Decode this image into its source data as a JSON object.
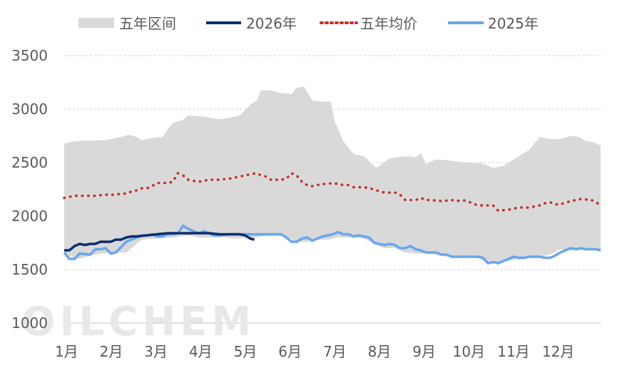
{
  "chart_data": {
    "type": "line",
    "title": "",
    "xlabel": "",
    "ylabel": "",
    "categories": [
      "1月",
      "2月",
      "3月",
      "4月",
      "5月",
      "6月",
      "7月",
      "8月",
      "9月",
      "10月",
      "11月",
      "12月"
    ],
    "ylim": [
      1000,
      3500
    ],
    "yticks": [
      1000,
      1500,
      2000,
      2500,
      3000,
      3500
    ],
    "grid": "horizontal dashed",
    "legend_position": "top",
    "x_unit": "day of year (Jan 1 = 0)",
    "watermark": "OILCHEM",
    "band": {
      "name": "五年区间",
      "color": "#d9d9d9",
      "upper": [
        [
          0,
          2680
        ],
        [
          10,
          2700
        ],
        [
          20,
          2705
        ],
        [
          40,
          2710
        ],
        [
          55,
          2740
        ],
        [
          62,
          2760
        ],
        [
          70,
          2740
        ],
        [
          75,
          2710
        ],
        [
          85,
          2730
        ],
        [
          95,
          2740
        ],
        [
          105,
          2870
        ],
        [
          115,
          2900
        ],
        [
          120,
          2940
        ],
        [
          135,
          2930
        ],
        [
          150,
          2905
        ],
        [
          160,
          2920
        ],
        [
          170,
          2940
        ],
        [
          180,
          3040
        ],
        [
          187,
          3090
        ],
        [
          190,
          3175
        ],
        [
          200,
          3175
        ],
        [
          210,
          3150
        ],
        [
          220,
          3140
        ],
        [
          225,
          3200
        ],
        [
          232,
          3210
        ],
        [
          240,
          3080
        ],
        [
          250,
          3070
        ],
        [
          258,
          3070
        ],
        [
          262,
          2880
        ],
        [
          270,
          2700
        ],
        [
          280,
          2580
        ],
        [
          290,
          2560
        ],
        [
          302,
          2450
        ],
        [
          315,
          2540
        ],
        [
          330,
          2560
        ],
        [
          340,
          2550
        ],
        [
          345,
          2590
        ],
        [
          350,
          2490
        ],
        [
          360,
          2530
        ],
        [
          372,
          2520
        ],
        [
          390,
          2500
        ],
        [
          405,
          2490
        ],
        [
          415,
          2450
        ],
        [
          425,
          2470
        ],
        [
          435,
          2530
        ],
        [
          450,
          2620
        ],
        [
          460,
          2740
        ],
        [
          470,
          2720
        ],
        [
          480,
          2720
        ],
        [
          490,
          2750
        ],
        [
          498,
          2740
        ],
        [
          505,
          2700
        ],
        [
          512,
          2690
        ],
        [
          519,
          2660
        ]
      ],
      "lower": [
        [
          0,
          1640
        ],
        [
          15,
          1600
        ],
        [
          30,
          1640
        ],
        [
          45,
          1660
        ],
        [
          60,
          1660
        ],
        [
          75,
          1780
        ],
        [
          90,
          1790
        ],
        [
          105,
          1800
        ],
        [
          120,
          1820
        ],
        [
          130,
          1800
        ],
        [
          140,
          1800
        ],
        [
          155,
          1800
        ],
        [
          165,
          1790
        ],
        [
          185,
          1800
        ],
        [
          200,
          1820
        ],
        [
          215,
          1810
        ],
        [
          225,
          1760
        ],
        [
          235,
          1760
        ],
        [
          245,
          1780
        ],
        [
          255,
          1780
        ],
        [
          265,
          1800
        ],
        [
          280,
          1800
        ],
        [
          290,
          1790
        ],
        [
          300,
          1740
        ],
        [
          310,
          1700
        ],
        [
          320,
          1700
        ],
        [
          330,
          1660
        ],
        [
          340,
          1650
        ],
        [
          350,
          1650
        ],
        [
          360,
          1640
        ],
        [
          370,
          1620
        ],
        [
          390,
          1620
        ],
        [
          405,
          1610
        ],
        [
          410,
          1560
        ],
        [
          420,
          1570
        ],
        [
          430,
          1580
        ],
        [
          440,
          1600
        ],
        [
          450,
          1620
        ],
        [
          460,
          1620
        ],
        [
          470,
          1640
        ],
        [
          480,
          1690
        ],
        [
          490,
          1680
        ],
        [
          500,
          1690
        ],
        [
          510,
          1690
        ],
        [
          519,
          1680
        ]
      ]
    },
    "series": [
      {
        "name": "五年均价",
        "color": "#c0312b",
        "style": "dotted",
        "points": [
          [
            0,
            2170
          ],
          [
            10,
            2190
          ],
          [
            20,
            2190
          ],
          [
            30,
            2190
          ],
          [
            40,
            2200
          ],
          [
            50,
            2200
          ],
          [
            55,
            2210
          ],
          [
            60,
            2210
          ],
          [
            65,
            2230
          ],
          [
            70,
            2240
          ],
          [
            75,
            2260
          ],
          [
            80,
            2260
          ],
          [
            85,
            2280
          ],
          [
            90,
            2310
          ],
          [
            95,
            2310
          ],
          [
            100,
            2310
          ],
          [
            105,
            2320
          ],
          [
            110,
            2400
          ],
          [
            115,
            2380
          ],
          [
            120,
            2340
          ],
          [
            125,
            2330
          ],
          [
            130,
            2320
          ],
          [
            140,
            2340
          ],
          [
            145,
            2340
          ],
          [
            150,
            2340
          ],
          [
            160,
            2350
          ],
          [
            170,
            2370
          ],
          [
            180,
            2390
          ],
          [
            185,
            2400
          ],
          [
            195,
            2370
          ],
          [
            200,
            2340
          ],
          [
            210,
            2340
          ],
          [
            215,
            2350
          ],
          [
            220,
            2400
          ],
          [
            225,
            2380
          ],
          [
            230,
            2320
          ],
          [
            235,
            2290
          ],
          [
            240,
            2280
          ],
          [
            245,
            2290
          ],
          [
            250,
            2300
          ],
          [
            255,
            2300
          ],
          [
            260,
            2310
          ],
          [
            265,
            2300
          ],
          [
            270,
            2290
          ],
          [
            275,
            2290
          ],
          [
            280,
            2270
          ],
          [
            290,
            2270
          ],
          [
            295,
            2260
          ],
          [
            300,
            2250
          ],
          [
            305,
            2230
          ],
          [
            310,
            2220
          ],
          [
            320,
            2220
          ],
          [
            325,
            2200
          ],
          [
            330,
            2150
          ],
          [
            340,
            2150
          ],
          [
            345,
            2170
          ],
          [
            350,
            2150
          ],
          [
            355,
            2150
          ],
          [
            365,
            2140
          ],
          [
            375,
            2150
          ],
          [
            380,
            2140
          ],
          [
            385,
            2150
          ],
          [
            390,
            2140
          ],
          [
            395,
            2120
          ],
          [
            400,
            2100
          ],
          [
            410,
            2100
          ],
          [
            415,
            2100
          ],
          [
            420,
            2050
          ],
          [
            430,
            2060
          ],
          [
            440,
            2080
          ],
          [
            450,
            2080
          ],
          [
            460,
            2100
          ],
          [
            465,
            2120
          ],
          [
            470,
            2130
          ],
          [
            475,
            2110
          ],
          [
            480,
            2110
          ],
          [
            490,
            2140
          ],
          [
            500,
            2160
          ],
          [
            510,
            2150
          ],
          [
            515,
            2130
          ],
          [
            519,
            2090
          ]
        ]
      },
      {
        "name": "2025年",
        "color": "#6aa6ee",
        "style": "solid",
        "points": [
          [
            0,
            1660
          ],
          [
            5,
            1600
          ],
          [
            10,
            1600
          ],
          [
            15,
            1650
          ],
          [
            25,
            1640
          ],
          [
            30,
            1690
          ],
          [
            35,
            1690
          ],
          [
            40,
            1700
          ],
          [
            45,
            1650
          ],
          [
            50,
            1660
          ],
          [
            60,
            1760
          ],
          [
            65,
            1780
          ],
          [
            70,
            1800
          ],
          [
            75,
            1820
          ],
          [
            80,
            1820
          ],
          [
            85,
            1830
          ],
          [
            90,
            1810
          ],
          [
            95,
            1810
          ],
          [
            100,
            1830
          ],
          [
            105,
            1830
          ],
          [
            110,
            1840
          ],
          [
            115,
            1910
          ],
          [
            120,
            1880
          ],
          [
            125,
            1860
          ],
          [
            130,
            1840
          ],
          [
            135,
            1860
          ],
          [
            140,
            1840
          ],
          [
            145,
            1820
          ],
          [
            150,
            1820
          ],
          [
            160,
            1830
          ],
          [
            170,
            1830
          ],
          [
            180,
            1830
          ],
          [
            190,
            1830
          ],
          [
            200,
            1830
          ],
          [
            210,
            1830
          ],
          [
            215,
            1800
          ],
          [
            220,
            1760
          ],
          [
            225,
            1760
          ],
          [
            230,
            1790
          ],
          [
            235,
            1800
          ],
          [
            240,
            1770
          ],
          [
            245,
            1790
          ],
          [
            250,
            1810
          ],
          [
            255,
            1820
          ],
          [
            260,
            1830
          ],
          [
            265,
            1850
          ],
          [
            270,
            1830
          ],
          [
            275,
            1830
          ],
          [
            280,
            1810
          ],
          [
            285,
            1820
          ],
          [
            290,
            1810
          ],
          [
            295,
            1800
          ],
          [
            300,
            1750
          ],
          [
            305,
            1740
          ],
          [
            310,
            1730
          ],
          [
            315,
            1740
          ],
          [
            320,
            1730
          ],
          [
            325,
            1700
          ],
          [
            330,
            1700
          ],
          [
            335,
            1720
          ],
          [
            340,
            1690
          ],
          [
            345,
            1680
          ],
          [
            350,
            1660
          ],
          [
            360,
            1660
          ],
          [
            365,
            1640
          ],
          [
            370,
            1640
          ],
          [
            375,
            1620
          ],
          [
            390,
            1620
          ],
          [
            400,
            1620
          ],
          [
            405,
            1610
          ],
          [
            410,
            1560
          ],
          [
            415,
            1570
          ],
          [
            420,
            1560
          ],
          [
            425,
            1580
          ],
          [
            430,
            1600
          ],
          [
            435,
            1620
          ],
          [
            440,
            1610
          ],
          [
            445,
            1610
          ],
          [
            450,
            1620
          ],
          [
            455,
            1620
          ],
          [
            460,
            1620
          ],
          [
            465,
            1610
          ],
          [
            470,
            1610
          ],
          [
            475,
            1630
          ],
          [
            480,
            1660
          ],
          [
            485,
            1680
          ],
          [
            490,
            1700
          ],
          [
            495,
            1690
          ],
          [
            500,
            1700
          ],
          [
            505,
            1690
          ],
          [
            510,
            1690
          ],
          [
            515,
            1690
          ],
          [
            519,
            1680
          ]
        ]
      },
      {
        "name": "2026年",
        "color": "#0c2d6e",
        "style": "solid",
        "points": [
          [
            0,
            1680
          ],
          [
            5,
            1680
          ],
          [
            10,
            1720
          ],
          [
            15,
            1740
          ],
          [
            20,
            1730
          ],
          [
            25,
            1740
          ],
          [
            30,
            1740
          ],
          [
            35,
            1760
          ],
          [
            40,
            1760
          ],
          [
            45,
            1760
          ],
          [
            50,
            1780
          ],
          [
            55,
            1780
          ],
          [
            60,
            1800
          ],
          [
            65,
            1810
          ],
          [
            70,
            1810
          ],
          [
            80,
            1820
          ],
          [
            90,
            1830
          ],
          [
            100,
            1840
          ],
          [
            110,
            1840
          ],
          [
            120,
            1840
          ],
          [
            130,
            1840
          ],
          [
            140,
            1840
          ],
          [
            150,
            1830
          ],
          [
            160,
            1830
          ],
          [
            170,
            1830
          ],
          [
            175,
            1820
          ],
          [
            180,
            1790
          ],
          [
            184,
            1780
          ]
        ]
      }
    ]
  },
  "legend": {
    "items": [
      {
        "label": "五年区间",
        "type": "band",
        "color": "#d9d9d9"
      },
      {
        "label": "2026年",
        "type": "line",
        "color": "#0c2d6e"
      },
      {
        "label": "五年均价",
        "type": "dotted",
        "color": "#c0312b"
      },
      {
        "label": "2025年",
        "type": "line",
        "color": "#6aa6ee"
      }
    ]
  }
}
